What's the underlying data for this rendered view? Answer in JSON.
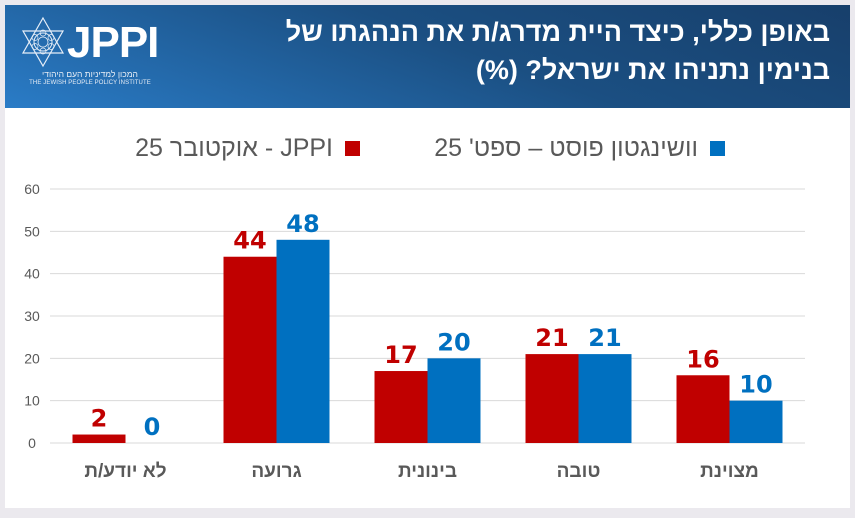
{
  "header": {
    "title_line1": "באופן כללי, כיצד היית מדרג/ת את הנהגתו של",
    "title_line2": "בנימין נתניהו את ישראל? (%)",
    "logo": {
      "name": "JPPI",
      "hebrew_subtitle": "המכון למדיניות העם היהודי",
      "english_subtitle": "THE JEWISH PEOPLE POLICY INSTITUTE",
      "icon": "star-of-david-icon"
    }
  },
  "colors": {
    "jppi": "#c00000",
    "wapo": "#0070c0",
    "axis_text": "#595959",
    "grid": "#d9d9d9"
  },
  "chart_data": {
    "type": "bar",
    "title": "באופן כללי, כיצד היית מדרג/ת את הנהגתו של בנימין נתניהו את ישראל? (%)",
    "xlabel": "",
    "ylabel": "",
    "ylim": [
      0,
      60
    ],
    "yticks": [
      0,
      10,
      20,
      30,
      40,
      50,
      60
    ],
    "grid": true,
    "legend_position": "top",
    "direction": "rtl",
    "categories": [
      "מצוינת",
      "טובה",
      "בינונית",
      "גרועה",
      "לא יודע/ת"
    ],
    "series": [
      {
        "name": "JPPI - אוקטובר 25",
        "color": "#c00000",
        "values": [
          16,
          21,
          17,
          44,
          2
        ]
      },
      {
        "name": "וושינגטון פוסט – ספט' 25",
        "color": "#0070c0",
        "values": [
          10,
          21,
          20,
          48,
          0
        ]
      }
    ]
  }
}
